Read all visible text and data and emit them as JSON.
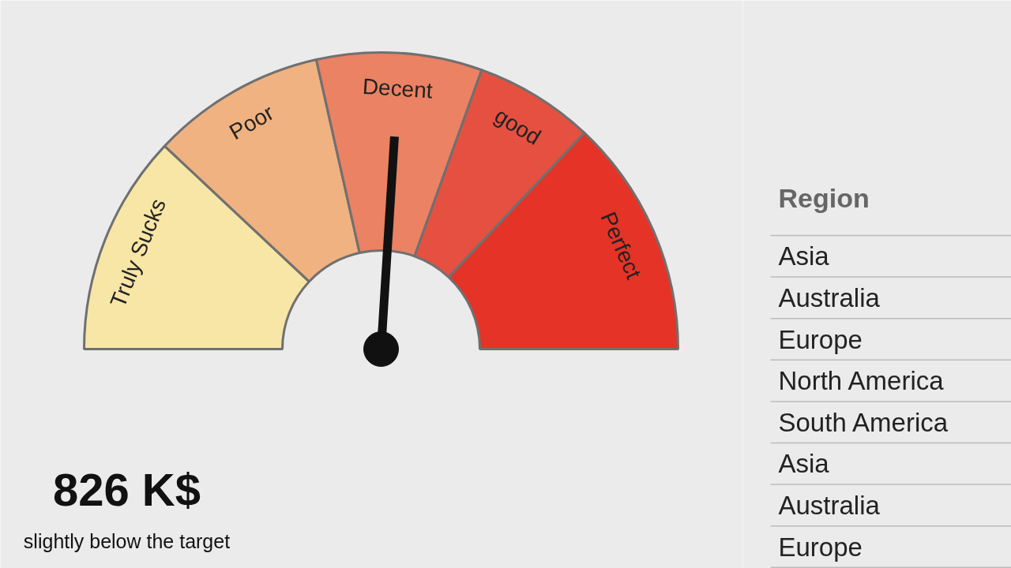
{
  "chart_data": [
    {
      "type": "donut",
      "categories": [
        "Truly Sucks",
        "Poor",
        "Decent",
        "good",
        "Perfect"
      ],
      "values": [
        24,
        19,
        18,
        13,
        26
      ],
      "colors": [
        "#f7e6a6",
        "#efb280",
        "#ea8263",
        "#e65040",
        "#e53327"
      ],
      "needle": "Decent",
      "annotations": [
        "826 K$",
        "slightly below the target"
      ]
    },
    {
      "type": "other",
      "title": "Region",
      "annotations": [
        "Asia",
        "Australia",
        "Europe",
        "North America",
        "South America",
        "Asia",
        "Australia",
        "Europe"
      ]
    }
  ]
}
